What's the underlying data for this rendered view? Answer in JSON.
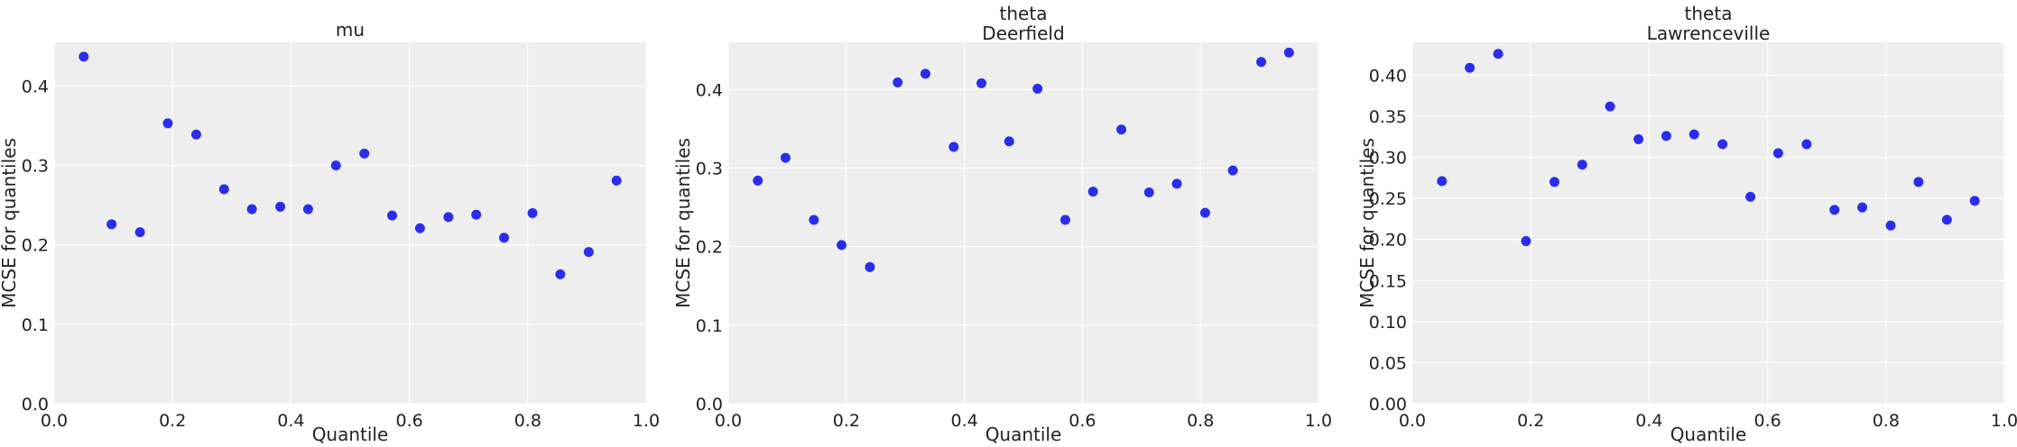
{
  "figure": {
    "marker_color": "#2a2eec",
    "background": "#eeeeee"
  },
  "chart_data": [
    {
      "type": "scatter",
      "title": "mu",
      "xlabel": "Quantile",
      "ylabel": "MCSE for quantiles",
      "xlim": [
        0,
        1
      ],
      "ylim": [
        0,
        0.455
      ],
      "xticks": [
        "0.0",
        "0.2",
        "0.4",
        "0.6",
        "0.8",
        "1.0"
      ],
      "xtick_values": [
        0,
        0.2,
        0.4,
        0.6,
        0.8,
        1.0
      ],
      "yticks": [
        "0.0",
        "0.1",
        "0.2",
        "0.3",
        "0.4"
      ],
      "ytick_values": [
        0,
        0.1,
        0.2,
        0.3,
        0.4
      ],
      "grid": true,
      "x": [
        0.05,
        0.097,
        0.145,
        0.192,
        0.24,
        0.287,
        0.334,
        0.382,
        0.429,
        0.476,
        0.524,
        0.571,
        0.618,
        0.666,
        0.713,
        0.76,
        0.808,
        0.855,
        0.903,
        0.95
      ],
      "y": [
        0.437,
        0.226,
        0.216,
        0.353,
        0.339,
        0.27,
        0.245,
        0.248,
        0.245,
        0.3,
        0.315,
        0.237,
        0.221,
        0.235,
        0.238,
        0.209,
        0.24,
        0.163,
        0.191,
        0.281
      ]
    },
    {
      "type": "scatter",
      "title": "theta\nDeerfield",
      "xlabel": "Quantile",
      "ylabel": "MCSE for quantiles",
      "xlim": [
        0,
        1
      ],
      "ylim": [
        0,
        0.46
      ],
      "xticks": [
        "0.0",
        "0.2",
        "0.4",
        "0.6",
        "0.8",
        "1.0"
      ],
      "xtick_values": [
        0,
        0.2,
        0.4,
        0.6,
        0.8,
        1.0
      ],
      "yticks": [
        "0.0",
        "0.1",
        "0.2",
        "0.3",
        "0.4"
      ],
      "ytick_values": [
        0,
        0.1,
        0.2,
        0.3,
        0.4
      ],
      "grid": true,
      "x": [
        0.05,
        0.097,
        0.145,
        0.192,
        0.24,
        0.287,
        0.334,
        0.382,
        0.429,
        0.476,
        0.524,
        0.571,
        0.618,
        0.666,
        0.713,
        0.76,
        0.808,
        0.855,
        0.903,
        0.95
      ],
      "y": [
        0.284,
        0.313,
        0.234,
        0.202,
        0.174,
        0.409,
        0.42,
        0.327,
        0.408,
        0.334,
        0.401,
        0.234,
        0.27,
        0.349,
        0.269,
        0.28,
        0.243,
        0.297,
        0.435,
        0.447
      ]
    },
    {
      "type": "scatter",
      "title": "theta\nLawrenceville",
      "xlabel": "Quantile",
      "ylabel": "MCSE for quantiles",
      "xlim": [
        0,
        1
      ],
      "ylim": [
        0,
        0.44
      ],
      "xticks": [
        "0.0",
        "0.2",
        "0.4",
        "0.6",
        "0.8",
        "1.0"
      ],
      "xtick_values": [
        0,
        0.2,
        0.4,
        0.6,
        0.8,
        1.0
      ],
      "yticks": [
        "0.00",
        "0.05",
        "0.10",
        "0.15",
        "0.20",
        "0.25",
        "0.30",
        "0.35",
        "0.40"
      ],
      "ytick_values": [
        0,
        0.05,
        0.1,
        0.15,
        0.2,
        0.25,
        0.3,
        0.35,
        0.4
      ],
      "grid": true,
      "x": [
        0.05,
        0.097,
        0.145,
        0.192,
        0.24,
        0.287,
        0.334,
        0.382,
        0.429,
        0.476,
        0.524,
        0.571,
        0.618,
        0.666,
        0.713,
        0.76,
        0.808,
        0.855,
        0.903,
        0.95
      ],
      "y": [
        0.271,
        0.409,
        0.426,
        0.198,
        0.27,
        0.291,
        0.362,
        0.322,
        0.326,
        0.328,
        0.316,
        0.252,
        0.305,
        0.316,
        0.236,
        0.239,
        0.217,
        0.27,
        0.224,
        0.247
      ]
    }
  ]
}
